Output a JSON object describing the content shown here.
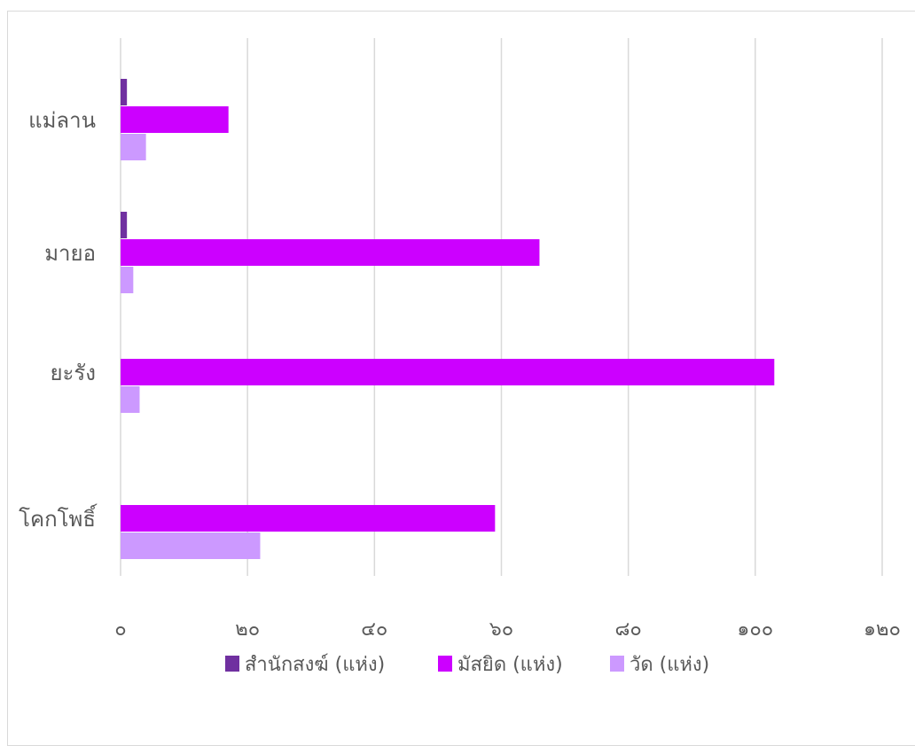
{
  "chart_data": {
    "type": "bar",
    "orientation": "horizontal",
    "categories": [
      "แม่ลาน",
      "มายอ",
      "ยะรัง",
      "โคกโพธิ์"
    ],
    "series": [
      {
        "name": "สำนักสงฆ์ (แห่ง)",
        "color": "#7030A0",
        "values": [
          1,
          1,
          0,
          0
        ]
      },
      {
        "name": "มัสยิด (แห่ง)",
        "color": "#CC00FF",
        "values": [
          17,
          66,
          103,
          59
        ]
      },
      {
        "name": "วัด (แห่ง)",
        "color": "#CC99FF",
        "values": [
          4,
          2,
          3,
          22
        ]
      }
    ],
    "xlim": [
      0,
      120
    ],
    "ticks": [
      0,
      20,
      40,
      60,
      80,
      100,
      120
    ],
    "tick_labels": [
      "๐",
      "๒๐",
      "๔๐",
      "๖๐",
      "๘๐",
      "๑๐๐",
      "๑๒๐"
    ],
    "grid": true,
    "gridline_color": "#d9d9d9",
    "legend_position": "bottom"
  }
}
